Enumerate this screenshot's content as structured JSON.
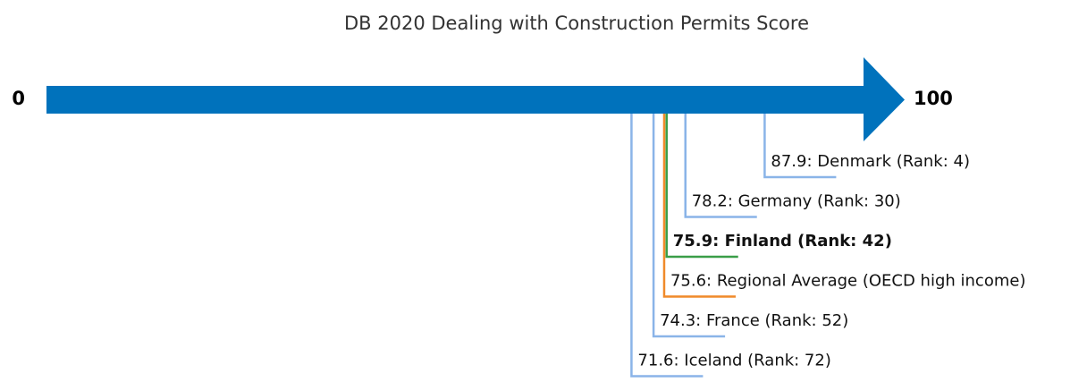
{
  "chart_data": {
    "type": "arrow",
    "title": "DB 2020 Dealing with Construction Permits Score",
    "xlim": [
      0,
      100
    ],
    "xticks": [
      0,
      100
    ],
    "values": [
      87.9,
      78.2,
      75.9,
      75.6,
      74.3,
      71.6
    ],
    "value_labels": [
      "87.9: Denmark (Rank: 4)",
      "78.2: Germany (Rank: 30)",
      "75.9: Finland (Rank: 42)",
      "75.6: Regional Average (OECD high income)",
      "74.3: France (Rank: 52)",
      "71.6: Iceland (Rank: 72)"
    ],
    "colors": [
      "#8ab4e8",
      "#8ab4e8",
      "#3a9e48",
      "#f08a2a",
      "#8ab4e8",
      "#8ab4e8"
    ],
    "highlight": [
      false,
      false,
      true,
      false,
      false,
      false
    ],
    "arrow_color": "#0072bc"
  }
}
